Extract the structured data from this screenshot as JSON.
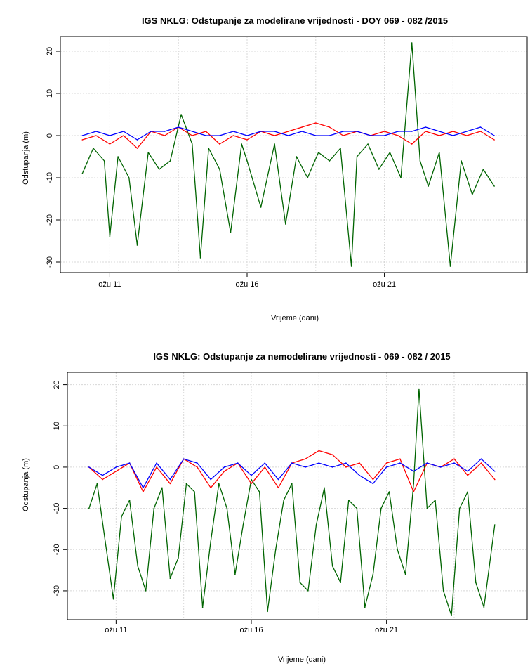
{
  "chart_data": [
    {
      "type": "line",
      "title": "IGS NKLG: Odstupanje za modelirane vrijednosti - DOY 069 - 082 /2015",
      "xlabel": "Vrijeme (dani)",
      "ylabel": "Odstupanja (m)",
      "x_tick_labels": [
        "ožu 11",
        "ožu 16",
        "ožu 21"
      ],
      "x_ticks": [
        11,
        16,
        21
      ],
      "y_ticks": [
        20,
        10,
        0,
        -10,
        -20,
        -30
      ],
      "xlim": [
        9.2,
        26.2
      ],
      "ylim": [
        -32.5,
        23.5
      ],
      "grid": true,
      "colors": {
        "red": "#ff0000",
        "blue": "#0000ff",
        "green": "#006400"
      },
      "series": [
        {
          "color": "red",
          "x": [
            10,
            10.5,
            11,
            11.5,
            12,
            12.5,
            13,
            13.5,
            14,
            14.5,
            15,
            15.5,
            16,
            16.5,
            17,
            17.5,
            18,
            18.5,
            19,
            19.5,
            20,
            20.5,
            21,
            21.5,
            22,
            22.5,
            23,
            23.5,
            24,
            24.5,
            25
          ],
          "values": [
            -1,
            0,
            -2,
            0,
            -3,
            1,
            0,
            2,
            0,
            1,
            -2,
            0,
            -1,
            1,
            0,
            1,
            2,
            3,
            2,
            0,
            1,
            0,
            1,
            0,
            -2,
            1,
            0,
            1,
            0,
            1,
            -1
          ]
        },
        {
          "color": "blue",
          "x": [
            10,
            10.5,
            11,
            11.5,
            12,
            12.5,
            13,
            13.5,
            14,
            14.5,
            15,
            15.5,
            16,
            16.5,
            17,
            17.5,
            18,
            18.5,
            19,
            19.5,
            20,
            20.5,
            21,
            21.5,
            22,
            22.5,
            23,
            23.5,
            24,
            24.5,
            25
          ],
          "values": [
            0,
            1,
            0,
            1,
            -1,
            1,
            1,
            2,
            1,
            0,
            0,
            1,
            0,
            1,
            1,
            0,
            1,
            0,
            0,
            1,
            1,
            0,
            0,
            1,
            1,
            2,
            1,
            0,
            1,
            2,
            0
          ]
        },
        {
          "color": "green",
          "x": [
            10,
            10.4,
            10.8,
            11.0,
            11.3,
            11.7,
            12.0,
            12.4,
            12.8,
            13.2,
            13.6,
            14.0,
            14.3,
            14.6,
            15.0,
            15.4,
            15.8,
            16.0,
            16.5,
            17.0,
            17.4,
            17.8,
            18.2,
            18.6,
            19.0,
            19.4,
            19.8,
            20.0,
            20.4,
            20.8,
            21.2,
            21.6,
            22.0,
            22.3,
            22.6,
            23.0,
            23.4,
            23.8,
            24.2,
            24.6,
            25.0
          ],
          "values": [
            -9,
            -3,
            -6,
            -24,
            -5,
            -10,
            -26,
            -4,
            -8,
            -6,
            5,
            -2,
            -29,
            -3,
            -8,
            -23,
            -2,
            -6,
            -17,
            -2,
            -21,
            -5,
            -10,
            -4,
            -6,
            -3,
            -31,
            -5,
            -2,
            -8,
            -4,
            -10,
            22,
            -6,
            -12,
            -4,
            -31,
            -6,
            -14,
            -8,
            -12
          ]
        }
      ]
    },
    {
      "type": "line",
      "title": "IGS NKLG: Odstupanje za nemodelirane vrijednosti - 069 - 082 / 2015",
      "xlabel": "Vrijeme (dani)",
      "ylabel": "Odstupanja (m)",
      "x_tick_labels": [
        "ožu 11",
        "ožu 16",
        "ožu 21"
      ],
      "x_ticks": [
        11,
        16,
        21
      ],
      "y_ticks": [
        20,
        10,
        0,
        -10,
        -20,
        -30
      ],
      "xlim": [
        9.2,
        26.2
      ],
      "ylim": [
        -37,
        23
      ],
      "grid": true,
      "colors": {
        "red": "#ff0000",
        "blue": "#0000ff",
        "green": "#006400"
      },
      "series": [
        {
          "color": "red",
          "x": [
            10,
            10.5,
            11,
            11.5,
            12,
            12.5,
            13,
            13.5,
            14,
            14.5,
            15,
            15.5,
            16,
            16.5,
            17,
            17.5,
            18,
            18.5,
            19,
            19.5,
            20,
            20.5,
            21,
            21.5,
            22,
            22.5,
            23,
            23.5,
            24,
            24.5,
            25
          ],
          "values": [
            0,
            -3,
            -1,
            1,
            -6,
            0,
            -4,
            2,
            0,
            -5,
            -1,
            1,
            -4,
            0,
            -5,
            1,
            2,
            4,
            3,
            0,
            1,
            -3,
            1,
            2,
            -6,
            1,
            0,
            2,
            -2,
            1,
            -3
          ]
        },
        {
          "color": "blue",
          "x": [
            10,
            10.5,
            11,
            11.5,
            12,
            12.5,
            13,
            13.5,
            14,
            14.5,
            15,
            15.5,
            16,
            16.5,
            17,
            17.5,
            18,
            18.5,
            19,
            19.5,
            20,
            20.5,
            21,
            21.5,
            22,
            22.5,
            23,
            23.5,
            24,
            24.5,
            25
          ],
          "values": [
            0,
            -2,
            0,
            1,
            -5,
            1,
            -3,
            2,
            1,
            -3,
            0,
            1,
            -2,
            1,
            -3,
            1,
            0,
            1,
            0,
            1,
            -2,
            -4,
            0,
            1,
            -1,
            1,
            0,
            1,
            -1,
            2,
            -1
          ]
        },
        {
          "color": "green",
          "x": [
            10,
            10.3,
            10.6,
            10.9,
            11.2,
            11.5,
            11.8,
            12.1,
            12.4,
            12.7,
            13.0,
            13.3,
            13.6,
            13.9,
            14.2,
            14.5,
            14.8,
            15.1,
            15.4,
            15.7,
            16.0,
            16.3,
            16.6,
            16.9,
            17.2,
            17.5,
            17.8,
            18.1,
            18.4,
            18.7,
            19.0,
            19.3,
            19.6,
            19.9,
            20.2,
            20.5,
            20.8,
            21.1,
            21.4,
            21.7,
            22.0,
            22.2,
            22.5,
            22.8,
            23.1,
            23.4,
            23.7,
            24.0,
            24.3,
            24.6,
            25.0
          ],
          "values": [
            -10,
            -4,
            -18,
            -32,
            -12,
            -8,
            -24,
            -30,
            -10,
            -5,
            -27,
            -22,
            -4,
            -6,
            -34,
            -18,
            -4,
            -10,
            -26,
            -14,
            -3,
            -6,
            -35,
            -20,
            -8,
            -4,
            -28,
            -30,
            -14,
            -5,
            -24,
            -28,
            -8,
            -10,
            -34,
            -26,
            -10,
            -6,
            -20,
            -26,
            -4,
            19,
            -10,
            -8,
            -30,
            -36,
            -10,
            -6,
            -28,
            -34,
            -14
          ]
        }
      ]
    }
  ]
}
